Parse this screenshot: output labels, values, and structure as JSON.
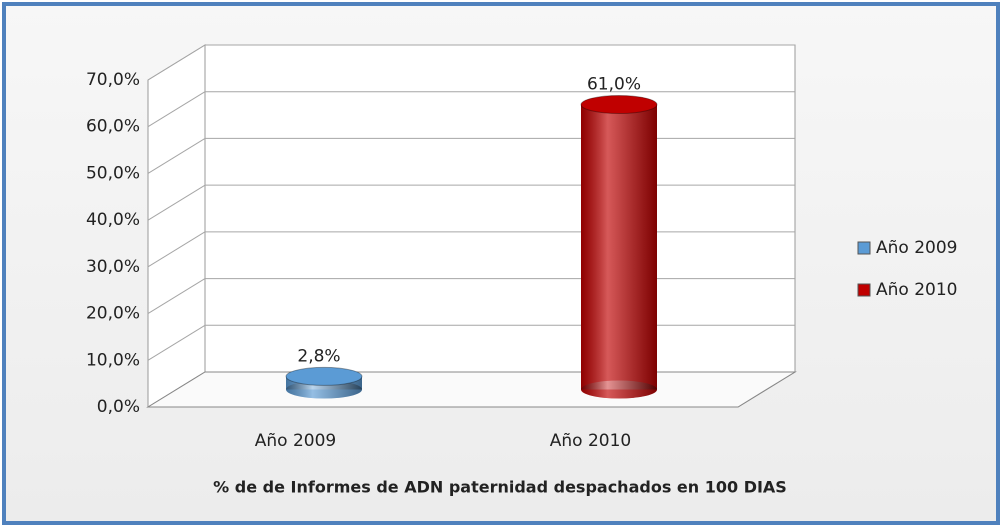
{
  "chart_data": {
    "type": "cylinder",
    "x_label": "% de de Informes de ADN paternidad despachados en 100 DIAS",
    "categories": [
      "Año 2009",
      "Año 2010"
    ],
    "series": [
      {
        "name": "Año 2009",
        "color": "#5b9bd5",
        "values": [
          2.8,
          null
        ],
        "value_labels": [
          "2,8%",
          null
        ]
      },
      {
        "name": "Año 2010",
        "color": "#c00000",
        "values": [
          null,
          61.0
        ],
        "value_labels": [
          null,
          "61,0%"
        ]
      }
    ],
    "ylim": [
      0,
      70
    ],
    "yticks": [
      {
        "value": 0,
        "label": "0,0%"
      },
      {
        "value": 10,
        "label": "10,0%"
      },
      {
        "value": 20,
        "label": "20,0%"
      },
      {
        "value": 30,
        "label": "30,0%"
      },
      {
        "value": 40,
        "label": "40,0%"
      },
      {
        "value": 50,
        "label": "50,0%"
      },
      {
        "value": 60,
        "label": "60,0%"
      },
      {
        "value": 70,
        "label": "70,0%"
      }
    ],
    "grid": true,
    "legend": "right"
  }
}
